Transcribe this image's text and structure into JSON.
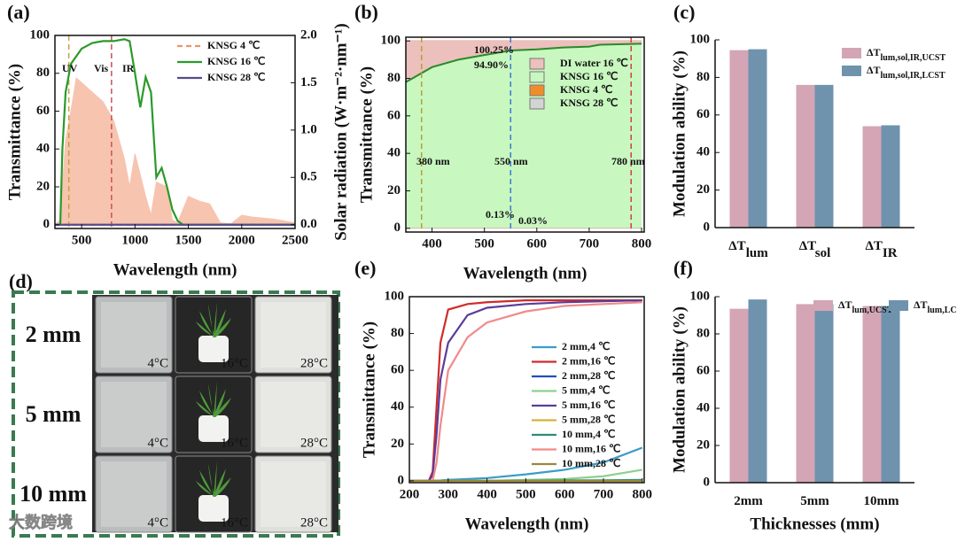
{
  "photo_panel": {
    "label": "(d)",
    "rows": [
      "2 mm",
      "5 mm",
      "10 mm"
    ],
    "temperatures": [
      "4°C",
      "16°C",
      "28°C"
    ],
    "watermark": "大数跨境"
  },
  "chart_data": [
    {
      "type": "line",
      "panel_label": "(a)",
      "xlabel": "Wavelength (nm)",
      "ylabel": "Transmittance (%)",
      "y2label": "Solar radiation (W·m⁻²·nm⁻¹)",
      "xlim": [
        250,
        2500
      ],
      "xticks": [
        500,
        1000,
        1500,
        2000,
        2500
      ],
      "ylim": [
        -2,
        100
      ],
      "yticks": [
        0,
        20,
        40,
        60,
        80,
        100
      ],
      "y2lim": [
        -0.04,
        2.0
      ],
      "y2ticks": [
        {
          "value": 0,
          "label": "0.0"
        },
        {
          "value": 0.5,
          "label": "0.5"
        },
        {
          "value": 1,
          "label": "1.0"
        },
        {
          "value": 1.5,
          "label": "1.5"
        },
        {
          "value": 2,
          "label": "2.0"
        }
      ],
      "legend": "upper right",
      "series": [
        {
          "name": "KNSG  4 ℃",
          "color": "#e8956a",
          "dash": true,
          "x": [
            250,
            2500
          ],
          "values": [
            0,
            0
          ]
        },
        {
          "name": "KNSG 16 ℃",
          "color": "#2a9a2a",
          "x": [
            250,
            300,
            320,
            350,
            400,
            500,
            600,
            700,
            800,
            900,
            950,
            1000,
            1050,
            1100,
            1150,
            1200,
            1250,
            1300,
            1350,
            1400,
            1450,
            1500,
            2500
          ],
          "values": [
            0,
            0,
            40,
            70,
            85,
            93,
            96,
            97,
            97,
            98,
            97,
            80,
            62,
            78,
            70,
            25,
            30,
            20,
            8,
            2,
            0,
            0,
            0
          ]
        },
        {
          "name": "KNSG 28 ℃",
          "color": "#5a4a8a",
          "x": [
            250,
            2500
          ],
          "values": [
            0,
            0
          ]
        },
        {
          "color": "#f7c4b0",
          "axis": "y2",
          "fill": true,
          "x": [
            250,
            300,
            350,
            400,
            450,
            500,
            550,
            600,
            700,
            800,
            900,
            950,
            1000,
            1100,
            1150,
            1200,
            1300,
            1350,
            1400,
            1500,
            1600,
            1700,
            1800,
            1900,
            2000,
            2100,
            2200,
            2300,
            2400,
            2500
          ],
          "values": [
            0,
            0.05,
            0.9,
            1.2,
            1.55,
            1.5,
            1.45,
            1.4,
            1.3,
            1.1,
            0.7,
            0.4,
            0.75,
            0.3,
            0.1,
            0.45,
            0.4,
            0.05,
            0.02,
            0.3,
            0.25,
            0.22,
            0.02,
            0.01,
            0.1,
            0.08,
            0.07,
            0.06,
            0.04,
            0.02
          ]
        }
      ],
      "reference_lines": [
        {
          "x": 380,
          "color": "#c8a040"
        },
        {
          "x": 780,
          "color": "#d05050"
        }
      ],
      "annotations": [
        "UV",
        "Vis",
        "IR"
      ]
    },
    {
      "type": "area",
      "panel_label": "(b)",
      "xlabel": "Wavelength (nm)",
      "ylabel": "Transmittance (%)",
      "xlim": [
        350,
        805
      ],
      "xticks": [
        400,
        500,
        600,
        700,
        800
      ],
      "ylim": [
        -2,
        102
      ],
      "yticks": [
        0,
        20,
        40,
        60,
        80,
        100
      ],
      "legend": "upper right",
      "x": [
        350,
        400,
        450,
        500,
        550,
        600,
        650,
        700,
        720,
        800
      ],
      "series": [
        {
          "name": "DI water 16 ℃",
          "color": "#ecc0bc",
          "values": [
            100.25,
            100.25,
            100.25,
            100.25,
            100.25,
            100.25,
            100.25,
            100.25,
            100.25,
            100.25
          ]
        },
        {
          "name": "KNSG  16 ℃",
          "color": "#c8f7c0",
          "line_color": "#2a8a2a",
          "values": [
            78,
            86,
            90,
            92.5,
            94.9,
            95.5,
            96.5,
            97,
            98,
            98.5
          ]
        },
        {
          "name": "KNSG    4 ℃",
          "color": "#f28c28",
          "values": [
            0.13,
            0.13,
            0.13,
            0.13,
            0.13,
            0.13,
            0.13,
            0.13,
            0.13,
            0.13
          ]
        },
        {
          "name": "KNSG   28 ℃",
          "color": "#d4d4d4",
          "values": [
            0.03,
            0.03,
            0.03,
            0.03,
            0.03,
            0.03,
            0.03,
            0.03,
            0.03,
            0.03
          ]
        }
      ],
      "reference_lines": [
        {
          "x": 380,
          "color": "#b8a030"
        },
        {
          "x": 550,
          "color": "#3a7ad0"
        },
        {
          "x": 780,
          "color": "#d04040"
        }
      ],
      "annotations": [
        "100.25%",
        "94.90%",
        "380 nm",
        "550 nm",
        "780 nm",
        "0.13%",
        "0.03%"
      ]
    },
    {
      "type": "bar",
      "panel_label": "(c)",
      "ylabel": "Modulation ability (%)",
      "categories": [
        "ΔT",
        "ΔT",
        "ΔT"
      ],
      "category_subscripts": [
        "lum",
        "sol",
        "IR"
      ],
      "ylim": [
        0,
        100
      ],
      "yticks": [
        0,
        20,
        40,
        60,
        80,
        100
      ],
      "legend": "upper right",
      "series": [
        {
          "name": "ΔT",
          "name_subscript": "lum,sol,IR,UCST",
          "color": "#d4a5b5",
          "values": [
            94.5,
            76,
            54
          ]
        },
        {
          "name": "ΔT",
          "name_subscript": "lum,sol,IR,LCST",
          "color": "#6f93ad",
          "values": [
            95,
            76,
            54.5
          ]
        }
      ]
    },
    {
      "type": "line",
      "panel_label": "(e)",
      "xlabel": "Wavelength (nm)",
      "ylabel": "Transmittance (%)",
      "xlim": [
        200,
        805
      ],
      "xticks": [
        200,
        300,
        400,
        500,
        600,
        700,
        800
      ],
      "ylim": [
        -1,
        100
      ],
      "yticks": [
        0,
        20,
        40,
        60,
        80,
        100
      ],
      "legend": "center right",
      "x": [
        200,
        250,
        260,
        270,
        280,
        300,
        350,
        400,
        500,
        600,
        700,
        800
      ],
      "series": [
        {
          "name": "2 mm,4 ℃",
          "color": "#3b9cc7",
          "values": [
            0,
            0,
            0,
            0.1,
            0.2,
            0.5,
            1,
            1.5,
            3.5,
            6,
            10,
            18
          ]
        },
        {
          "name": "2 mm,16 ℃",
          "color": "#d12a2a",
          "values": [
            0,
            0,
            5,
            40,
            75,
            93,
            96,
            97,
            98,
            98,
            98,
            98
          ]
        },
        {
          "name": "2 mm,28 ℃",
          "color": "#1f4fbf",
          "values": [
            0,
            0,
            0,
            0,
            0,
            0,
            0,
            0,
            0,
            0,
            0,
            0
          ]
        },
        {
          "name": "5 mm,4 ℃",
          "color": "#8fcf8f",
          "values": [
            0,
            0,
            0,
            0,
            0,
            0,
            0,
            0,
            0.5,
            1,
            2.5,
            6
          ]
        },
        {
          "name": "5 mm,16 ℃",
          "color": "#5a3d9a",
          "values": [
            0,
            0,
            3,
            25,
            55,
            75,
            90,
            94,
            96,
            97,
            97.5,
            98
          ]
        },
        {
          "name": "5 mm,28 ℃",
          "color": "#d7b23a",
          "values": [
            0,
            0,
            0,
            0,
            0,
            0,
            0,
            0,
            0,
            0,
            0,
            0
          ]
        },
        {
          "name": "10 mm,4 ℃",
          "color": "#2e8b7a",
          "values": [
            0,
            0,
            0,
            0,
            0,
            0,
            0,
            0,
            0.1,
            0.2,
            0.3,
            0.5
          ]
        },
        {
          "name": "10 mm,16 ℃",
          "color": "#f08a8a",
          "values": [
            0,
            0,
            0,
            10,
            30,
            60,
            78,
            86,
            92,
            95,
            96,
            97
          ]
        },
        {
          "name": "10 mm,28 ℃",
          "color": "#9a8a3a",
          "values": [
            0,
            0,
            0,
            0,
            0,
            0,
            0,
            0,
            0,
            0,
            0,
            0
          ]
        }
      ]
    },
    {
      "type": "bar",
      "panel_label": "(f)",
      "xlabel": "Thicknesses (mm)",
      "ylabel": "Modulation ability (%)",
      "categories": [
        "2mm",
        "5mm",
        "10mm"
      ],
      "ylim": [
        0,
        100
      ],
      "yticks": [
        0,
        20,
        40,
        60,
        80,
        100
      ],
      "legend": "upper center",
      "series": [
        {
          "name": "ΔT",
          "name_subscript": "lum,UCST",
          "color": "#d4a5b5",
          "values": [
            93.5,
            96,
            95
          ]
        },
        {
          "name": "ΔT",
          "name_subscript": "lum,LCST",
          "color": "#6f93ad",
          "values": [
            98.5,
            96,
            95
          ]
        }
      ]
    }
  ]
}
